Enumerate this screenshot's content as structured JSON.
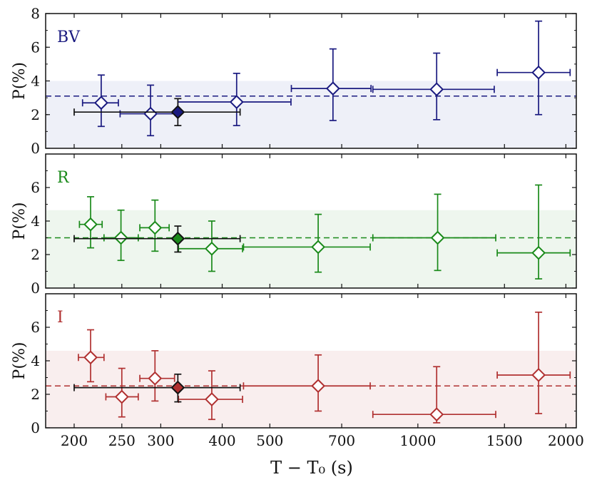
{
  "chart_data": {
    "type": "scatter",
    "xlabel": "T − T₀ (s)",
    "x_scale": "log",
    "xlim": [
      175,
      2100
    ],
    "x_ticks": [
      200,
      250,
      300,
      400,
      500,
      700,
      1000,
      1500,
      2000
    ],
    "x_tick_labels": [
      "200",
      "250",
      "300",
      "400",
      "500",
      "700",
      "1000",
      "1500",
      "2000"
    ],
    "panels": [
      {
        "name": "BV",
        "label": "BV",
        "color": "#1a1a80",
        "band_color": "#eef0f8",
        "ylabel": "P(%)",
        "ylim": [
          0,
          8
        ],
        "y_ticks": [
          0,
          2,
          4,
          6,
          8
        ],
        "y_tick_labels": [
          "0",
          "2",
          "4",
          "6",
          "8"
        ],
        "mean": 3.1,
        "band": [
          0,
          4.0
        ],
        "points": [
          {
            "x": 227,
            "xlo": 208,
            "xhi": 246,
            "y": 2.7,
            "ylo": 1.3,
            "yhi": 4.35
          },
          {
            "x": 286,
            "xlo": 248,
            "xhi": 326,
            "y": 2.05,
            "ylo": 0.75,
            "yhi": 3.75
          },
          {
            "x": 428,
            "xlo": 325,
            "xhi": 552,
            "y": 2.75,
            "ylo": 1.35,
            "yhi": 4.45
          },
          {
            "x": 672,
            "xlo": 553,
            "xhi": 803,
            "y": 3.55,
            "ylo": 1.65,
            "yhi": 5.9
          },
          {
            "x": 1092,
            "xlo": 810,
            "xhi": 1430,
            "y": 3.5,
            "ylo": 1.7,
            "yhi": 5.65
          },
          {
            "x": 1760,
            "xlo": 1450,
            "xhi": 2040,
            "y": 4.5,
            "ylo": 2.0,
            "yhi": 7.55
          }
        ],
        "combined": {
          "x": 325,
          "xlo": 200,
          "xhi": 435,
          "y": 2.15,
          "ylo": 1.35,
          "yhi": 2.95,
          "fill": "#1a1a80"
        }
      },
      {
        "name": "R",
        "label": "R",
        "color": "#1a8a1a",
        "band_color": "#eef6ee",
        "ylabel": "P(%)",
        "ylim": [
          0,
          8
        ],
        "y_ticks": [
          0,
          2,
          4,
          6
        ],
        "y_tick_labels": [
          "0",
          "2",
          "4",
          "6"
        ],
        "mean": 3.0,
        "band": [
          0,
          4.65
        ],
        "points": [
          {
            "x": 216,
            "xlo": 205,
            "xhi": 228,
            "y": 3.8,
            "ylo": 2.4,
            "yhi": 5.45
          },
          {
            "x": 249,
            "xlo": 230,
            "xhi": 270,
            "y": 3.0,
            "ylo": 1.65,
            "yhi": 4.65
          },
          {
            "x": 292,
            "xlo": 272,
            "xhi": 312,
            "y": 3.6,
            "ylo": 2.2,
            "yhi": 5.25
          },
          {
            "x": 381,
            "xlo": 326,
            "xhi": 440,
            "y": 2.35,
            "ylo": 1.0,
            "yhi": 4.0
          },
          {
            "x": 627,
            "xlo": 442,
            "xhi": 800,
            "y": 2.45,
            "ylo": 0.95,
            "yhi": 4.4
          },
          {
            "x": 1097,
            "xlo": 810,
            "xhi": 1440,
            "y": 3.0,
            "ylo": 1.05,
            "yhi": 5.6
          },
          {
            "x": 1760,
            "xlo": 1450,
            "xhi": 2040,
            "y": 2.1,
            "ylo": 0.55,
            "yhi": 6.15
          }
        ],
        "combined": {
          "x": 325,
          "xlo": 200,
          "xhi": 435,
          "y": 2.95,
          "ylo": 2.15,
          "yhi": 3.7,
          "fill": "#1a8a1a"
        }
      },
      {
        "name": "I",
        "label": "I",
        "color": "#b03030",
        "band_color": "#f9eeee",
        "ylabel": "P(%)",
        "ylim": [
          0,
          8
        ],
        "y_ticks": [
          0,
          2,
          4,
          6
        ],
        "y_tick_labels": [
          "0",
          "2",
          "4",
          "6"
        ],
        "mean": 2.5,
        "band": [
          0,
          4.6
        ],
        "points": [
          {
            "x": 216,
            "xlo": 204,
            "xhi": 230,
            "y": 4.2,
            "ylo": 2.75,
            "yhi": 5.85
          },
          {
            "x": 250,
            "xlo": 232,
            "xhi": 270,
            "y": 1.85,
            "ylo": 0.65,
            "yhi": 3.55
          },
          {
            "x": 292,
            "xlo": 272,
            "xhi": 320,
            "y": 2.95,
            "ylo": 1.6,
            "yhi": 4.6
          },
          {
            "x": 381,
            "xlo": 326,
            "xhi": 440,
            "y": 1.7,
            "ylo": 0.5,
            "yhi": 3.4
          },
          {
            "x": 627,
            "xlo": 442,
            "xhi": 800,
            "y": 2.5,
            "ylo": 1.0,
            "yhi": 4.35
          },
          {
            "x": 1092,
            "xlo": 810,
            "xhi": 1440,
            "y": 0.8,
            "ylo": 0.3,
            "yhi": 3.65
          },
          {
            "x": 1760,
            "xlo": 1450,
            "xhi": 2040,
            "y": 3.15,
            "ylo": 0.85,
            "yhi": 6.9
          }
        ],
        "combined": {
          "x": 325,
          "xlo": 200,
          "xhi": 435,
          "y": 2.4,
          "ylo": 1.55,
          "yhi": 3.2,
          "fill": "#b03030"
        }
      }
    ]
  }
}
